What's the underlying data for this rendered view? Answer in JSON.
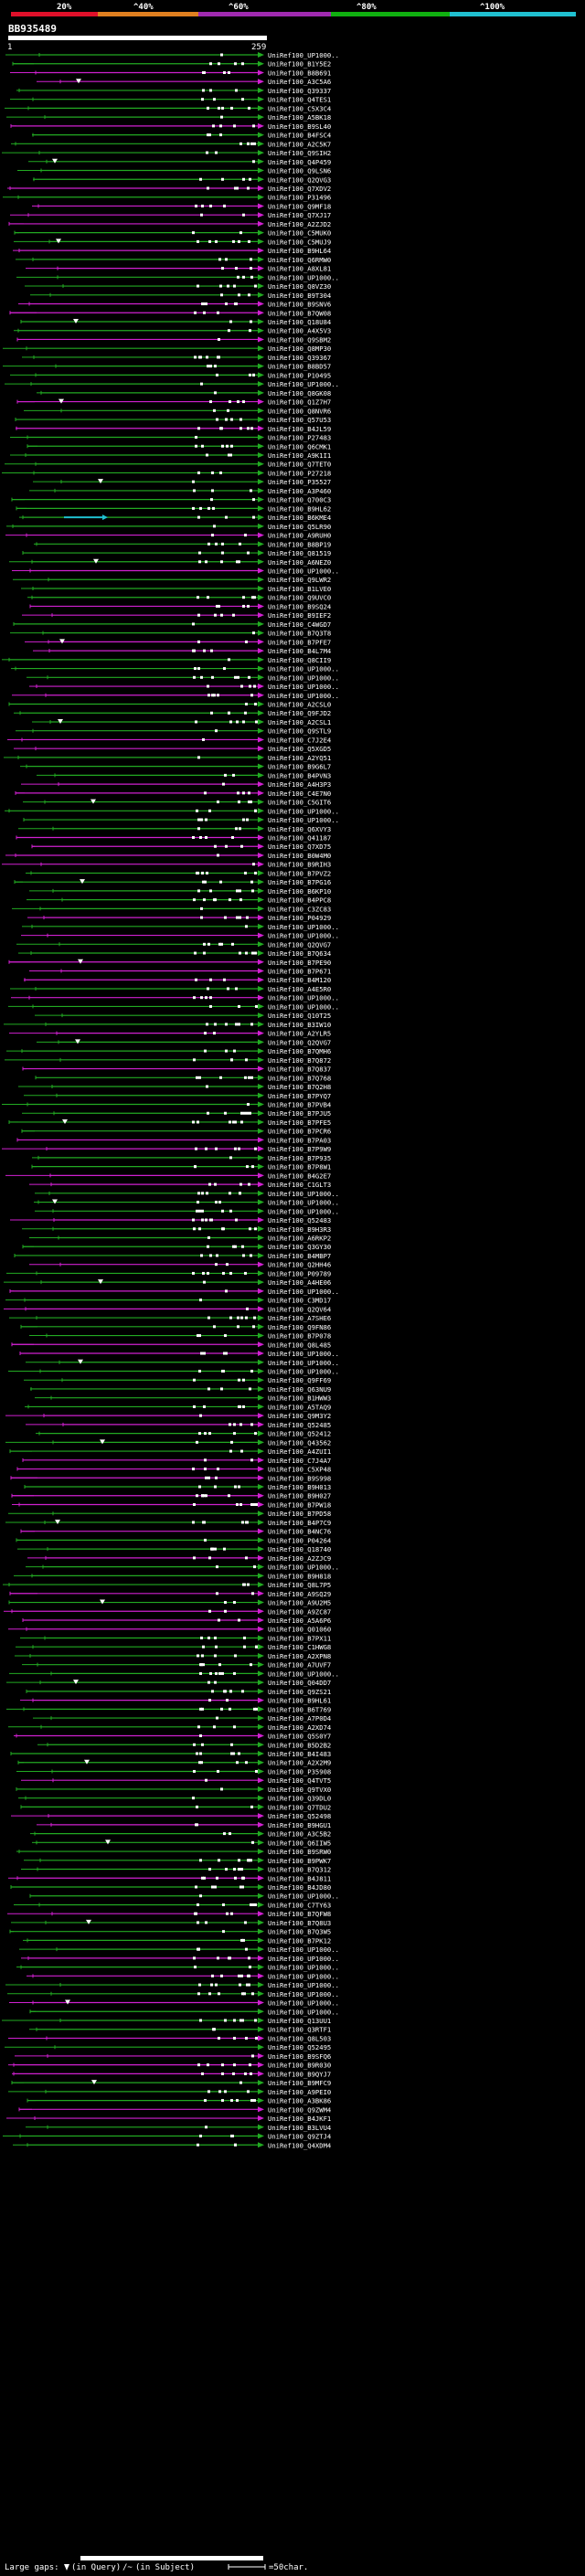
{
  "scale": {
    "labels": [
      "20%",
      "^40%",
      "^60%",
      "^80%",
      "^100%"
    ],
    "colors": [
      "#e0102a",
      "#e08020",
      "#a02ab0",
      "#10b010",
      "#20c0d0"
    ]
  },
  "query": {
    "id": "BB935489",
    "start": "1",
    "end": "259"
  },
  "colors": {
    "green": "#22aa22",
    "magenta": "#d020d0",
    "cyan": "#20c0d0",
    "white": "#ffffff"
  },
  "hits": [
    "UniRef100_UP1000..",
    "UniRef100_B1Y5E2",
    "UniRef100_B8B691",
    "UniRef100_A3C5A6",
    "UniRef100_Q39337",
    "UniRef100_Q4TES1",
    "UniRef100_C5X3C4",
    "UniRef100_A5BK18",
    "UniRef100_B9SL40",
    "UniRef100_B4FSC4",
    "UniRef100_A2C5K7",
    "UniRef100_Q9SIH2",
    "UniRef100_Q4P459",
    "UniRef100_Q9LSN6",
    "UniRef100_Q2QVG3",
    "UniRef100_Q7XDV2",
    "UniRef100_P31496",
    "UniRef100_Q9MF18",
    "UniRef100_Q7XJ17",
    "UniRef100_A2ZJD2",
    "UniRef100_C5MUK0",
    "UniRef100_C5MUJ9",
    "UniRef100_B9HL64",
    "UniRef100_Q6RMW0",
    "UniRef100_A8XL81",
    "UniRef100_UP1000..",
    "UniRef100_Q8VZ30",
    "UniRef100_B9T304",
    "UniRef100_B9SNV6",
    "UniRef100_B7QW08",
    "UniRef100_Q18U84",
    "UniRef100_A4X5V3",
    "UniRef100_Q9SBM2",
    "UniRef100_Q8MP30",
    "UniRef100_Q39367",
    "UniRef100_B8BD57",
    "UniRef100_P10495",
    "UniRef100_UP1000..",
    "UniRef100_Q8GK08",
    "UniRef100_Q1Z7H7",
    "UniRef100_Q8NVR6",
    "UniRef100_Q57U53",
    "UniRef100_B4JL59",
    "UniRef100_P27483",
    "UniRef100_Q6CMK1",
    "UniRef100_A9K1I1",
    "UniRef100_Q7TET0",
    "UniRef100_P27218",
    "UniRef100_P35527",
    "UniRef100_A3P460",
    "UniRef100_Q700C3",
    "UniRef100_B9HL62",
    "UniRef100_B6KME4",
    "UniRef100_Q5LR90",
    "UniRef100_A9RUH0",
    "UniRef100_B8BP19",
    "UniRef100_Q81519",
    "UniRef100_A6NEZ0",
    "UniRef100_UP1000..",
    "UniRef100_Q9LWR2",
    "UniRef100_B1LVE0",
    "UniRef100_Q9UVC0",
    "UniRef100_B9SQ24",
    "UniRef100_B9IEF2",
    "UniRef100_C4WGD7",
    "UniRef100_B7Q3T8",
    "UniRef100_B7PFE7",
    "UniRef100_B4L7M4",
    "UniRef100_Q8CII9",
    "UniRef100_UP1000..",
    "UniRef100_UP1000..",
    "UniRef100_UP1000..",
    "UniRef100_UP1000..",
    "UniRef100_A2CSL0",
    "UniRef100_Q9FJD2",
    "UniRef100_A2CSL1",
    "UniRef100_Q9STL9",
    "UniRef100_C7J2E4",
    "UniRef100_Q5XGD5",
    "UniRef100_A2YQ51",
    "UniRef100_B9G6L7",
    "UniRef100_B4PVN3",
    "UniRef100_A4H3P3",
    "UniRef100_C4E7N0",
    "UniRef100_C5GIT6",
    "UniRef100_UP1000..",
    "UniRef100_UP1000..",
    "UniRef100_Q6XVY3",
    "UniRef100_Q41187",
    "UniRef100_Q7XD75",
    "UniRef100_B0W4M0",
    "UniRef100_B9RIH3",
    "UniRef100_B7PVZ2",
    "UniRef100_B7PG16",
    "UniRef100_B6KP10",
    "UniRef100_B4PPC8",
    "UniRef100_C3ZC83",
    "UniRef100_P04929",
    "UniRef100_UP1000..",
    "UniRef100_UP1000..",
    "UniRef100_Q2QVG7",
    "UniRef100_B7Q634",
    "UniRef100_B7PE90",
    "UniRef100_B7P671",
    "UniRef100_B4M120",
    "UniRef100_A4E5R0",
    "UniRef100_UP1000..",
    "UniRef100_UP1000..",
    "UniRef100_Q10T25",
    "UniRef100_B3IW10",
    "UniRef100_A2YLR5",
    "UniRef100_Q2QVG7",
    "UniRef100_B7QMH6",
    "UniRef100_B7Q872",
    "UniRef100_B7Q837",
    "UniRef100_B7Q768",
    "UniRef100_B7Q2H8",
    "UniRef100_B7PYQ7",
    "UniRef100_B7PVB4",
    "UniRef100_B7PJU5",
    "UniRef100_B7PFE5",
    "UniRef100_B7PCR6",
    "UniRef100_B7PA03",
    "UniRef100_B7P9W9",
    "UniRef100_B7P935",
    "UniRef100_B7P8W1",
    "UniRef100_B4G2E7",
    "UniRef100_C1GLT3",
    "UniRef100_UP1000..",
    "UniRef100_UP1000..",
    "UniRef100_UP1000..",
    "UniRef100_Q52483",
    "UniRef100_B9H3R3",
    "UniRef100_A6RKP2",
    "UniRef100_Q3GY30",
    "UniRef100_B4MBP7",
    "UniRef100_Q2HH46",
    "UniRef100_P09789",
    "UniRef100_A4HE06",
    "UniRef100_UP1000..",
    "UniRef100_C3MD17",
    "UniRef100_Q2QV64",
    "UniRef100_A7SHE6",
    "UniRef100_Q9FN86",
    "UniRef100_B7P078",
    "UniRef100_Q8L485",
    "UniRef100_UP1000..",
    "UniRef100_UP1000..",
    "UniRef100_UP1000..",
    "UniRef100_Q9FF69",
    "UniRef100_Q63NU9",
    "UniRef100_B1HWW3",
    "UniRef100_A5TAQ9",
    "UniRef100_Q9M3Y2",
    "UniRef100_Q52485",
    "UniRef100_Q52412",
    "UniRef100_Q43562",
    "UniRef100_A4ZUI1",
    "UniRef100_C7J4A7",
    "UniRef100_C5XP48",
    "UniRef100_B9S998",
    "UniRef100_B9H013",
    "UniRef100_B9H027",
    "UniRef100_B7PW18",
    "UniRef100_B7PD58",
    "UniRef100_B4P7C9",
    "UniRef100_B4NC76",
    "UniRef100_P04264",
    "UniRef100_Q18740",
    "UniRef100_A2ZJC9",
    "UniRef100_UP1000..",
    "UniRef100_B9H818",
    "UniRef100_Q8L7P5",
    "UniRef100_A9SQ29",
    "UniRef100_A9U2M5",
    "UniRef100_A9ZC87",
    "UniRef100_A5A6P6",
    "UniRef100_Q01060",
    "UniRef100_B7PX11",
    "UniRef100_C1HWG8",
    "UniRef100_A2XPN8",
    "UniRef100_A7UVF7",
    "UniRef100_UP1000..",
    "UniRef100_Q04DD7",
    "UniRef100_Q9ZS21",
    "UniRef100_B9HL61",
    "UniRef100_B6T769",
    "UniRef100_A7P0D4",
    "UniRef100_A2XD74",
    "UniRef100_Q5S0Y7",
    "UniRef100_B5D2B2",
    "UniRef100_B4I483",
    "UniRef100_A2X2M9",
    "UniRef100_P35908",
    "UniRef100_Q4TVT5",
    "UniRef100_Q9TVX0",
    "UniRef100_Q39DL0",
    "UniRef100_Q7TDU2",
    "UniRef100_Q52498",
    "UniRef100_B9HGU1",
    "UniRef100_A3C5B2",
    "UniRef100_Q6IIW5",
    "UniRef100_B9SRW0",
    "UniRef100_B9PWK7",
    "UniRef100_B7Q312",
    "UniRef100_B4J811",
    "UniRef100_B4JD80",
    "UniRef100_UP1000..",
    "UniRef100_C7TY63",
    "UniRef100_B7QFW8",
    "UniRef100_B7Q8U3",
    "UniRef100_B7Q3W5",
    "UniRef100_B7PK12",
    "UniRef100_UP1000..",
    "UniRef100_UP1000..",
    "UniRef100_UP1000..",
    "UniRef100_UP1000..",
    "UniRef100_UP1000..",
    "UniRef100_UP1000..",
    "UniRef100_UP1000..",
    "UniRef100_UP1000..",
    "UniRef100_Q13UU1",
    "UniRef100_Q3RTF1",
    "UniRef100_Q8L503",
    "UniRef100_Q52495",
    "UniRef100_B9SFQ6",
    "UniRef100_B9R030",
    "UniRef100_B9QYJ7",
    "UniRef100_B9MFC9",
    "UniRef100_A9PEI0",
    "UniRef100_A3BK86",
    "UniRef100_Q9ZWM4",
    "UniRef100_B4JKF1",
    "UniRef100_B3LVU4",
    "UniRef100_Q9ZTJ4",
    "UniRef100_Q4XDM4"
  ],
  "legend": {
    "prefix": "Large gaps: ",
    "query_text": "(in Query)",
    "subject_text": "(in Subject)",
    "scale_text": "=50char."
  }
}
